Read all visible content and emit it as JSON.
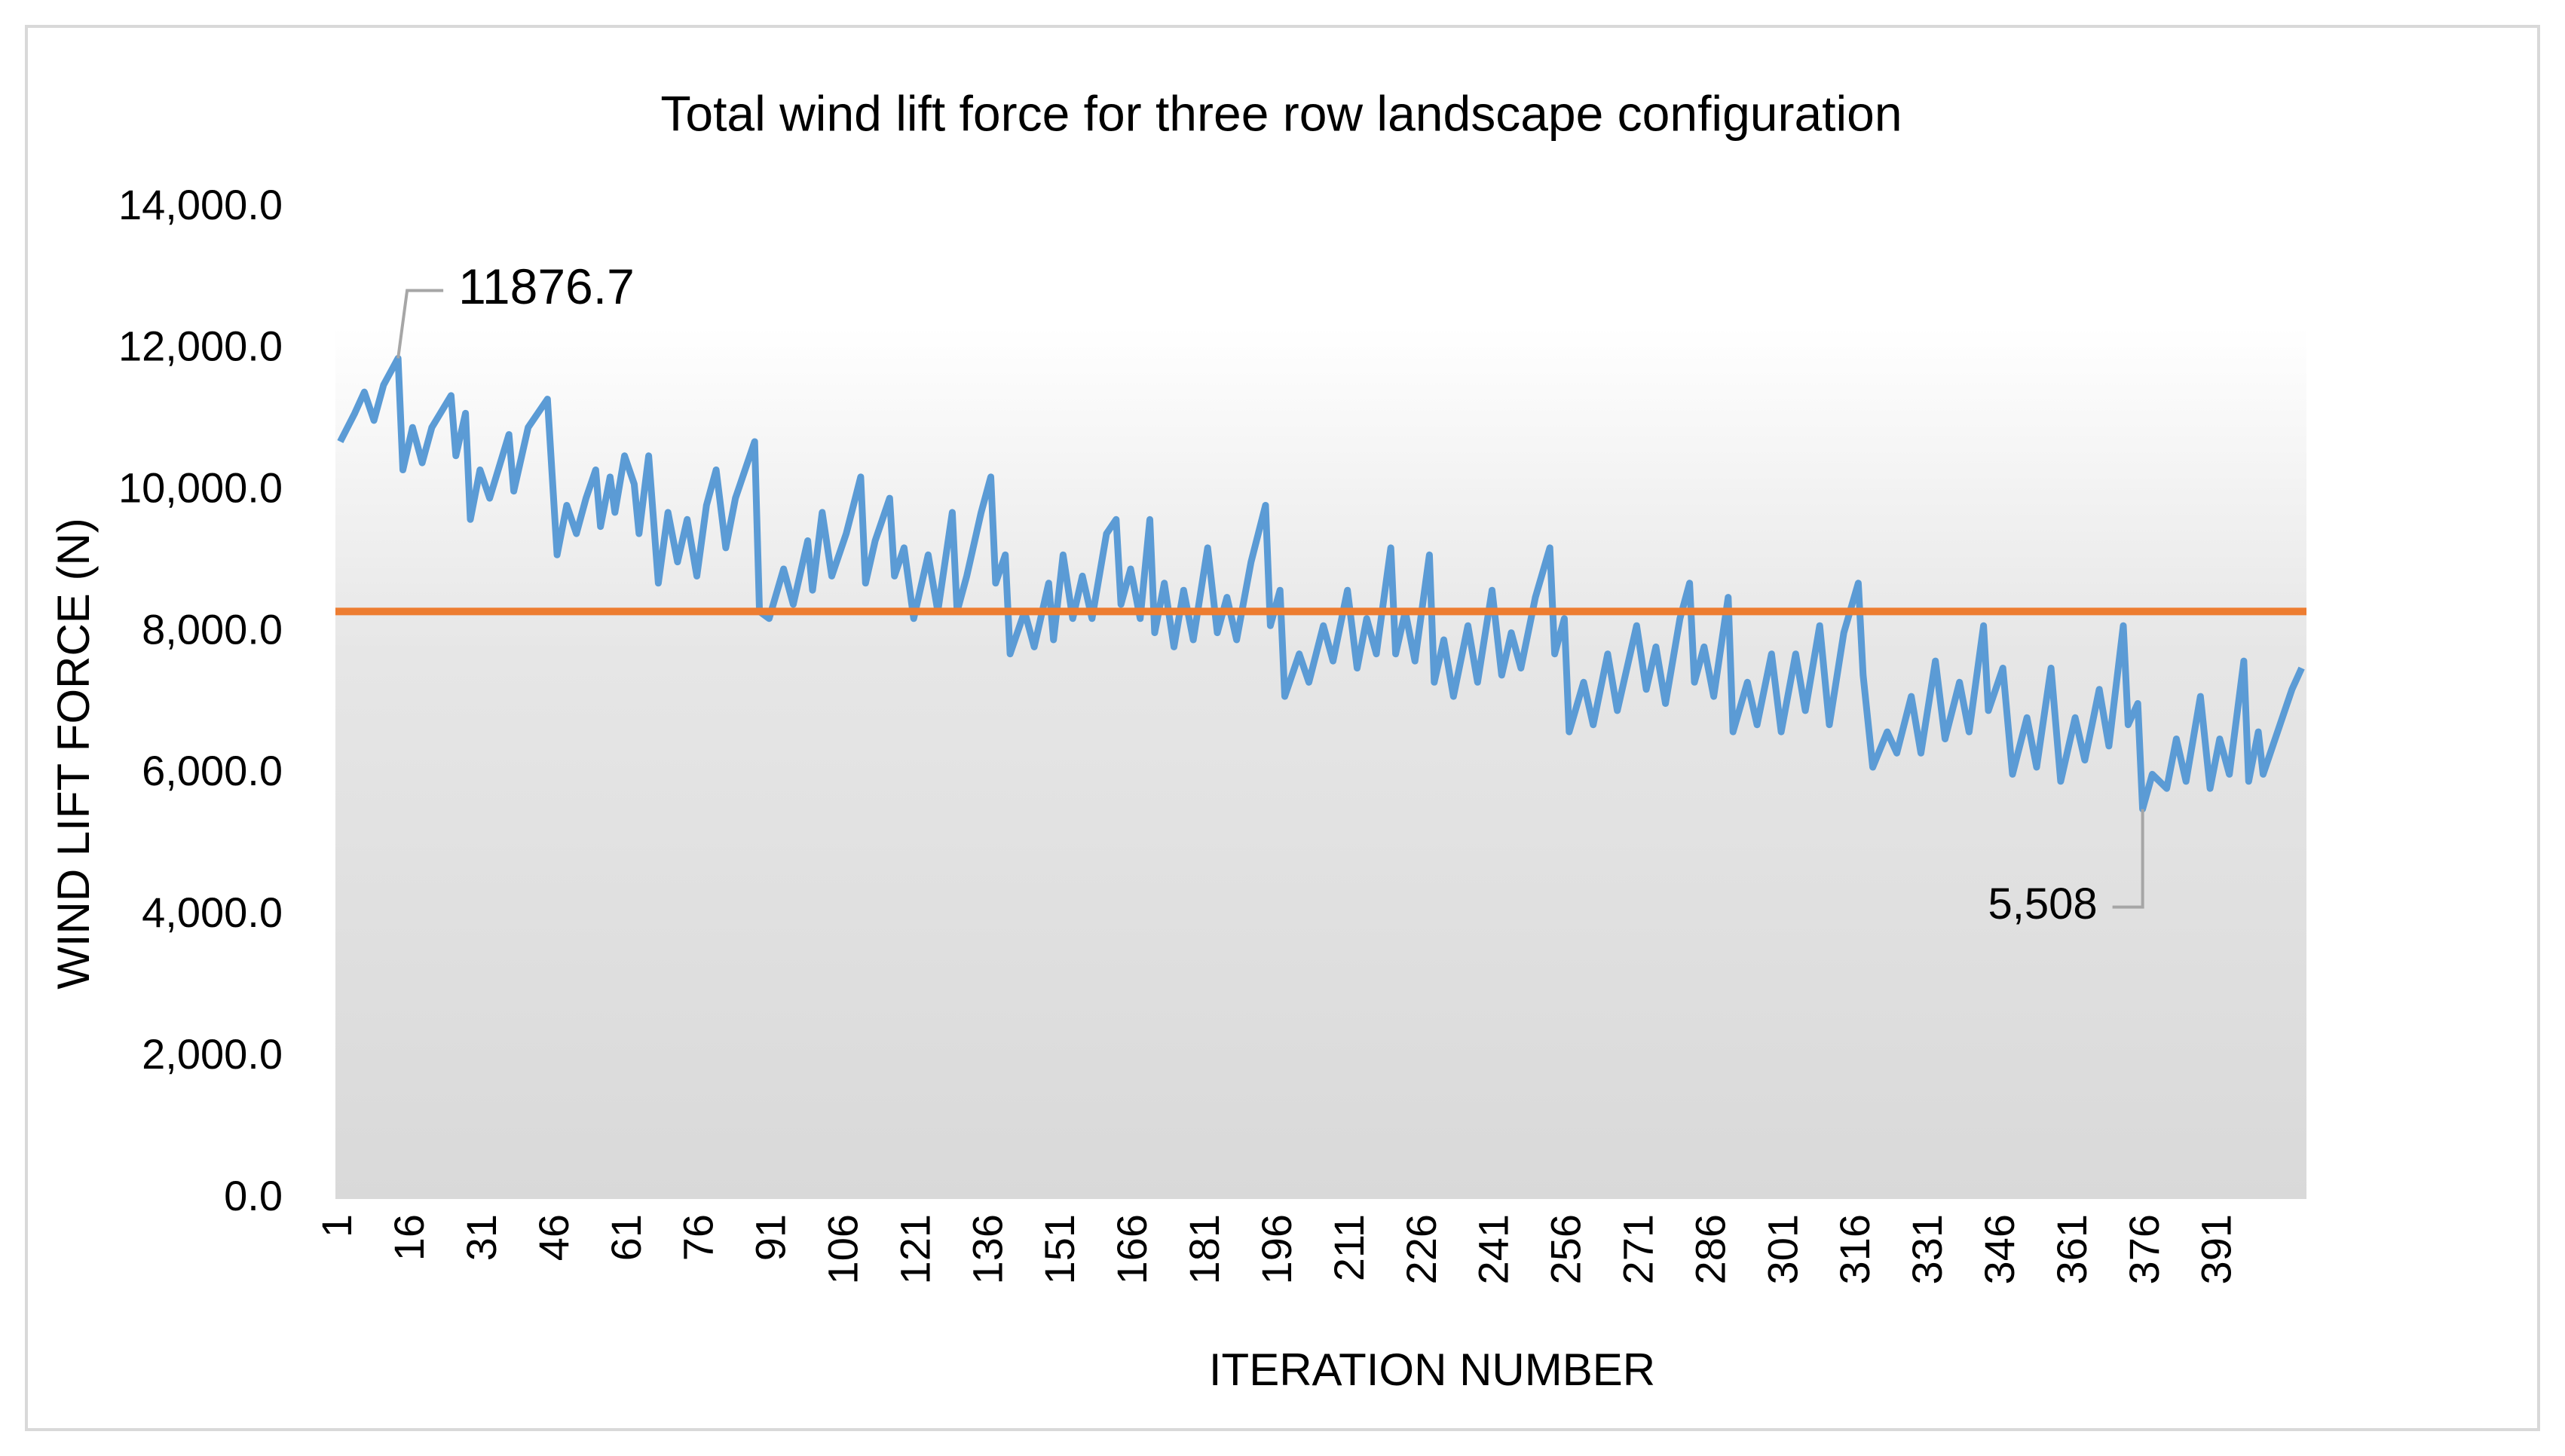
{
  "chart_data": {
    "type": "line",
    "title": "Total wind lift force for three row landscape configuration",
    "x_label": "ITERATION NUMBER",
    "y_label": "WIND LIFT FORCE (N)",
    "xlim": [
      0,
      409
    ],
    "xticks": [
      1,
      16,
      31,
      46,
      61,
      76,
      91,
      106,
      121,
      136,
      151,
      166,
      181,
      196,
      211,
      226,
      241,
      256,
      271,
      286,
      301,
      316,
      331,
      346,
      361,
      376,
      391
    ],
    "ylim": [
      0,
      14000
    ],
    "yticks": [
      {
        "value": 0,
        "label": "0.0"
      },
      {
        "value": 2000,
        "label": "2,000.0"
      },
      {
        "value": 4000,
        "label": "4,000.0"
      },
      {
        "value": 6000,
        "label": "6,000.0"
      },
      {
        "value": 8000,
        "label": "8,000.0"
      },
      {
        "value": 10000,
        "label": "10,000.0"
      },
      {
        "value": 12000,
        "label": "12,000.0"
      },
      {
        "value": 14000,
        "label": "14,000.0"
      }
    ],
    "grid": false,
    "series": [
      {
        "color": "#5b9bd5",
        "x": [
          1,
          4,
          6,
          8,
          10,
          13,
          14,
          16,
          18,
          20,
          24,
          25,
          27,
          28,
          30,
          32,
          36,
          37,
          40,
          44,
          46,
          48,
          50,
          52,
          54,
          55,
          57,
          58,
          60,
          62,
          63,
          65,
          67,
          69,
          71,
          73,
          75,
          77,
          79,
          81,
          83,
          87,
          88,
          90,
          93,
          95,
          98,
          99,
          101,
          103,
          106,
          109,
          110,
          112,
          115,
          116,
          118,
          120,
          123,
          125,
          128,
          129,
          131,
          134,
          136,
          137,
          139,
          140,
          143,
          145,
          148,
          149,
          151,
          153,
          155,
          157,
          160,
          162,
          163,
          165,
          167,
          169,
          170,
          172,
          174,
          176,
          178,
          181,
          183,
          185,
          187,
          190,
          193,
          194,
          196,
          197,
          200,
          202,
          205,
          207,
          210,
          212,
          214,
          216,
          219,
          220,
          222,
          224,
          227,
          228,
          230,
          232,
          235,
          237,
          240,
          242,
          244,
          246,
          249,
          252,
          253,
          255,
          256,
          259,
          261,
          264,
          266,
          270,
          272,
          274,
          276,
          279,
          281,
          282,
          284,
          286,
          289,
          290,
          293,
          295,
          298,
          300,
          303,
          305,
          308,
          310,
          313,
          316,
          317,
          319,
          322,
          324,
          327,
          329,
          332,
          334,
          337,
          339,
          342,
          343,
          346,
          348,
          351,
          353,
          356,
          358,
          361,
          363,
          366,
          368,
          371,
          372,
          374,
          375,
          377,
          380,
          382,
          384,
          387,
          389,
          391,
          393,
          396,
          397,
          399,
          400,
          406,
          408
        ],
        "values": [
          10700,
          11100,
          11400,
          11000,
          11500,
          11876.7,
          10300,
          10900,
          10400,
          10900,
          11350,
          10500,
          11100,
          9600,
          10300,
          9900,
          10800,
          10000,
          10900,
          11300,
          9100,
          9800,
          9400,
          9900,
          10300,
          9500,
          10200,
          9700,
          10500,
          10100,
          9400,
          10500,
          8700,
          9700,
          9000,
          9600,
          8800,
          9800,
          10300,
          9200,
          9900,
          10700,
          8300,
          8200,
          8900,
          8400,
          9300,
          8600,
          9700,
          8800,
          9400,
          10200,
          8700,
          9300,
          9900,
          8800,
          9200,
          8200,
          9100,
          8300,
          9700,
          8300,
          8800,
          9700,
          10200,
          8700,
          9100,
          7700,
          8300,
          7800,
          8700,
          7900,
          9100,
          8200,
          8800,
          8200,
          9400,
          9600,
          8400,
          8900,
          8200,
          9600,
          8000,
          8700,
          7800,
          8600,
          7900,
          9200,
          8000,
          8500,
          7900,
          9000,
          9800,
          8100,
          8600,
          7100,
          7700,
          7300,
          8100,
          7600,
          8600,
          7500,
          8200,
          7700,
          9200,
          7700,
          8300,
          7600,
          9100,
          7300,
          7900,
          7100,
          8100,
          7300,
          8600,
          7400,
          8000,
          7500,
          8500,
          9200,
          7700,
          8200,
          6600,
          7300,
          6700,
          7700,
          6900,
          8100,
          7200,
          7800,
          7000,
          8200,
          8700,
          7300,
          7800,
          7100,
          8500,
          6600,
          7300,
          6700,
          7700,
          6600,
          7700,
          6900,
          8100,
          6700,
          8000,
          8700,
          7400,
          6100,
          6600,
          6300,
          7100,
          6300,
          7600,
          6500,
          7300,
          6600,
          8100,
          6900,
          7500,
          6000,
          6800,
          6100,
          7500,
          5900,
          6800,
          6200,
          7200,
          6400,
          8100,
          6700,
          7000,
          5508,
          6000,
          5800,
          6500,
          5900,
          7100,
          5800,
          6500,
          6000,
          7600,
          5900,
          6600,
          6000,
          7200,
          7500
        ]
      },
      {
        "color": "#ed7d31",
        "x": [
          0,
          409
        ],
        "values": [
          8300,
          8300
        ]
      }
    ],
    "annotations": [
      {
        "text": "11876.7",
        "x": 13,
        "value": 11876.7
      },
      {
        "text": "5,508",
        "x": 375,
        "value": 5508
      }
    ]
  }
}
